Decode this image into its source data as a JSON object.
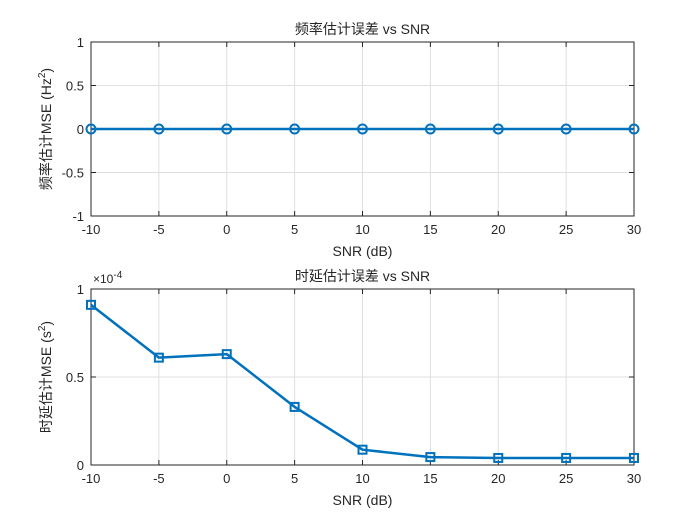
{
  "chart_data": [
    {
      "type": "line",
      "title": "频率估计误差 vs SNR",
      "xlabel": "SNR (dB)",
      "ylabel_main": "频率估计MSE (Hz",
      "ylabel_sup": "2",
      "ylabel_close": ")",
      "xlim": [
        -10,
        30
      ],
      "ylim": [
        -1,
        1
      ],
      "x_ticks": [
        -10,
        -5,
        0,
        5,
        10,
        15,
        20,
        25,
        30
      ],
      "x_tick_labels": [
        "-10",
        "-5",
        "0",
        "5",
        "10",
        "15",
        "20",
        "25",
        "30"
      ],
      "y_ticks": [
        -1,
        -0.5,
        0,
        0.5,
        1
      ],
      "y_tick_labels": [
        "-1",
        "-0.5",
        "0",
        "0.5",
        "1"
      ],
      "grid": true,
      "marker": "circle",
      "color": "#0072BD",
      "series": [
        {
          "x": [
            -10,
            -5,
            0,
            5,
            10,
            15,
            20,
            25,
            30
          ],
          "values": [
            0,
            0,
            0,
            0,
            0,
            0,
            0,
            0,
            0
          ]
        }
      ]
    },
    {
      "type": "line",
      "title": "时延估计误差 vs SNR",
      "xlabel": "SNR (dB)",
      "ylabel_main": "时延估计MSE (s",
      "ylabel_sup": "2",
      "ylabel_close": ")",
      "y_exponent_base": "×10",
      "y_exponent": "-4",
      "y_scale_factor": 0.0001,
      "xlim": [
        -10,
        30
      ],
      "ylim": [
        0,
        0.0001
      ],
      "x_ticks": [
        -10,
        -5,
        0,
        5,
        10,
        15,
        20,
        25,
        30
      ],
      "x_tick_labels": [
        "-10",
        "-5",
        "0",
        "5",
        "10",
        "15",
        "20",
        "25",
        "30"
      ],
      "y_ticks": [
        0,
        5e-05,
        0.0001
      ],
      "y_tick_labels": [
        "0",
        "0.5",
        "1"
      ],
      "grid": true,
      "marker": "square",
      "color": "#0072BD",
      "series": [
        {
          "x": [
            -10,
            -5,
            0,
            5,
            10,
            15,
            20,
            25,
            30
          ],
          "values": [
            9.1e-05,
            6.1e-05,
            6.3e-05,
            3.3e-05,
            8.7e-06,
            4.5e-06,
            4e-06,
            4e-06,
            4e-06
          ]
        }
      ]
    }
  ]
}
